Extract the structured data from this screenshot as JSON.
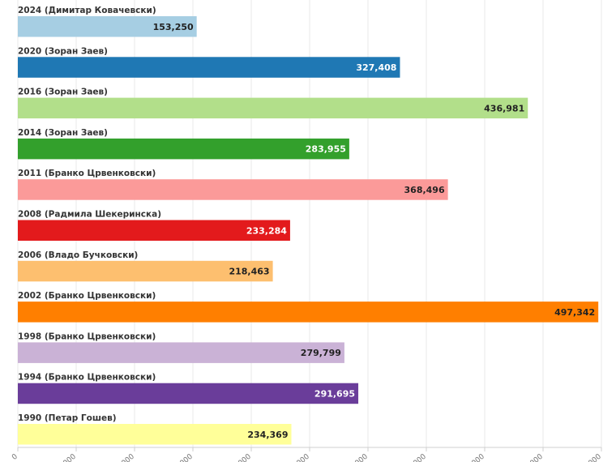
{
  "chart_data": {
    "type": "bar",
    "orientation": "horizontal",
    "categories": [
      "2024 (Димитар Ковачевски)",
      "2020 (Зоран Заев)",
      "2016 (Зоран Заев)",
      "2014 (Зоран Заев)",
      "2011 (Бранко Црвенковски)",
      "2008 (Радмила Шекеринска)",
      "2006 (Владо Бучковски)",
      "2002 (Бранко Црвенковски)",
      "1998 (Бранко Црвенковски)",
      "1994 (Бранко Црвенковски)",
      "1990 (Петар Гошев)"
    ],
    "values": [
      153250,
      327408,
      436981,
      283955,
      368496,
      233284,
      218463,
      497342,
      279799,
      291695,
      234369
    ],
    "value_labels": [
      "153,250",
      "327,408",
      "436,981",
      "283,955",
      "368,496",
      "233,284",
      "218,463",
      "497,342",
      "279,799",
      "291,695",
      "234,369"
    ],
    "colors": [
      "#a6cee3",
      "#1f78b4",
      "#b2df8a",
      "#33a02c",
      "#fb9a99",
      "#e31a1c",
      "#fdbf6f",
      "#ff7f00",
      "#cab2d6",
      "#6a3d9a",
      "#ffff99"
    ],
    "label_colors": [
      "#222222",
      "#ffffff",
      "#222222",
      "#ffffff",
      "#222222",
      "#ffffff",
      "#222222",
      "#222222",
      "#222222",
      "#ffffff",
      "#222222"
    ],
    "xlim": [
      0,
      500000
    ],
    "xticks": [
      0,
      50000,
      100000,
      150000,
      200000,
      250000,
      300000,
      350000,
      400000,
      450000,
      500000
    ],
    "grid": true,
    "title": "",
    "xlabel": "",
    "ylabel": ""
  }
}
